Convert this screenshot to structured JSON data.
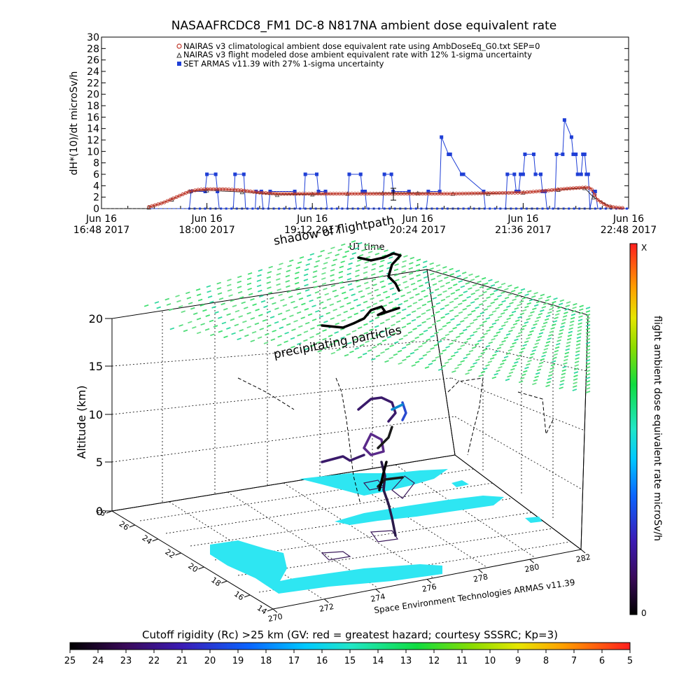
{
  "chart_data": [
    {
      "type": "line",
      "title": "NASAAFRCDC8_FM1 DC-8    N817NA ambient dose equivalent rate",
      "ylabel": "dH*(10)/dt microSv/h",
      "xlabel": "UT time",
      "ylim": [
        0,
        30
      ],
      "yticks": [
        0,
        2,
        4,
        6,
        8,
        10,
        12,
        14,
        16,
        18,
        20,
        22,
        24,
        26,
        28,
        30
      ],
      "xlim_hours": [
        16.8,
        22.8
      ],
      "xticks": [
        {
          "h": 16.8,
          "date": "Jun 16",
          "time": "16:48 2017"
        },
        {
          "h": 18.0,
          "date": "Jun 16",
          "time": "18:00 2017"
        },
        {
          "h": 19.2,
          "date": "Jun 16",
          "time": "19:12 2017"
        },
        {
          "h": 20.4,
          "date": "Jun 16",
          "time": "20:24 2017"
        },
        {
          "h": 21.6,
          "date": "Jun 16",
          "time": "21:36 2017"
        },
        {
          "h": 22.8,
          "date": "Jun 16",
          "time": "22:48 2017"
        }
      ],
      "legend_position": "top",
      "series": [
        {
          "name": "NAIRAS v3 climatological ambient dose equivalent rate using AmbDoseEq_G0.txt SEP=0",
          "color": "#c0392b",
          "marker": "circle",
          "x": [
            17.34,
            17.5,
            17.65,
            17.8,
            17.9,
            18.0,
            18.2,
            18.4,
            18.6,
            18.8,
            19.0,
            19.2,
            19.5,
            19.8,
            20.1,
            20.4,
            20.8,
            21.2,
            21.6,
            21.9,
            22.1,
            22.3,
            22.37,
            22.45,
            22.55,
            22.65,
            22.75
          ],
          "y": [
            0.3,
            1.0,
            2.0,
            3.0,
            3.3,
            3.4,
            3.4,
            3.2,
            2.8,
            2.6,
            2.6,
            2.6,
            2.6,
            2.6,
            2.6,
            2.6,
            2.6,
            2.7,
            2.8,
            3.2,
            3.5,
            3.7,
            3.6,
            1.5,
            0.5,
            0.2,
            0.1
          ]
        },
        {
          "name": "NAIRAS v3 flight modeled dose ambient equivalent rate with 12% 1-sigma uncertainty",
          "color": "#333333",
          "marker": "triangle",
          "x": [
            17.34,
            17.6,
            17.8,
            18.0,
            18.4,
            18.8,
            19.2,
            19.6,
            20.0,
            20.4,
            20.8,
            21.2,
            21.6,
            22.0,
            22.3,
            22.4,
            22.6
          ],
          "y": [
            0.2,
            1.6,
            3.0,
            3.2,
            2.9,
            2.4,
            2.5,
            2.6,
            2.7,
            2.7,
            2.6,
            2.6,
            2.8,
            3.3,
            3.6,
            2.0,
            0.3
          ]
        },
        {
          "name": "SET ARMAS v11.39 with 27% 1-sigma uncertainty",
          "color": "#1f3fd6",
          "marker": "square",
          "x": [
            17.34,
            17.8,
            17.82,
            17.98,
            18.0,
            18.1,
            18.12,
            18.14,
            18.3,
            18.32,
            18.42,
            18.44,
            18.55,
            18.56,
            18.62,
            18.64,
            18.7,
            18.72,
            19.0,
            19.02,
            19.1,
            19.12,
            19.25,
            19.27,
            19.35,
            19.37,
            19.6,
            19.62,
            19.75,
            19.77,
            19.8,
            19.82,
            20.0,
            20.02,
            20.1,
            20.12,
            20.3,
            20.32,
            20.5,
            20.52,
            20.65,
            20.67,
            20.75,
            20.77,
            20.9,
            20.92,
            21.15,
            21.17,
            21.4,
            21.42,
            21.5,
            21.52,
            21.55,
            21.57,
            21.6,
            21.62,
            21.72,
            21.74,
            21.8,
            21.82,
            21.85,
            21.87,
            21.92,
            21.96,
            21.98,
            22.05,
            22.07,
            22.15,
            22.17,
            22.2,
            22.22,
            22.26,
            22.28,
            22.3,
            22.32,
            22.34,
            22.36,
            22.4,
            22.42,
            22.45,
            22.47,
            22.55,
            22.65,
            22.75,
            22.8
          ],
          "y": [
            0,
            0,
            3,
            3,
            6,
            6,
            3,
            0,
            0,
            6,
            6,
            0,
            0,
            3,
            3,
            0,
            0,
            3,
            3,
            0,
            0,
            6,
            6,
            3,
            3,
            0,
            0,
            6,
            6,
            3,
            3,
            0,
            0,
            6,
            6,
            3,
            3,
            0,
            0,
            3,
            3,
            12.5,
            9.5,
            9.5,
            6,
            6,
            3,
            0,
            0,
            6,
            6,
            3,
            3,
            6,
            6,
            9.5,
            9.5,
            6,
            6,
            3,
            3,
            0,
            0,
            0,
            9.5,
            9.5,
            15.5,
            12.5,
            9.5,
            9.5,
            6,
            6,
            9.5,
            9.5,
            6,
            6,
            0,
            3,
            3,
            0,
            0,
            0,
            0,
            0,
            0
          ]
        }
      ]
    },
    {
      "type": "3d-map",
      "zlabel": "Altitude (km)",
      "zticks": [
        0,
        5,
        10,
        15,
        20
      ],
      "xticks": [
        270,
        272,
        274,
        276,
        278,
        280,
        282
      ],
      "yticks": [
        14,
        16,
        18,
        20,
        22,
        24,
        26,
        28
      ],
      "annotations": [
        "shadow of flightpath",
        "precipitating particles",
        "Space Environment Technologies ARMAS v11.39"
      ],
      "colorbar_right": {
        "label": "flight ambient dose equivalent rate microSv/h",
        "top": "X",
        "bottom": "0"
      },
      "colorbar_bottom": {
        "label": "Cutoff rigidity (Rc) >25 km (GV: red = greatest hazard; courtesy SSSRC; Kp=3)",
        "ticks": [
          "25",
          "24",
          "23",
          "22",
          "21",
          "20",
          "19",
          "18",
          "17",
          "16",
          "15",
          "14",
          "13",
          "12",
          "11",
          "10",
          "9",
          "8",
          "7",
          "6",
          "5"
        ]
      }
    }
  ]
}
